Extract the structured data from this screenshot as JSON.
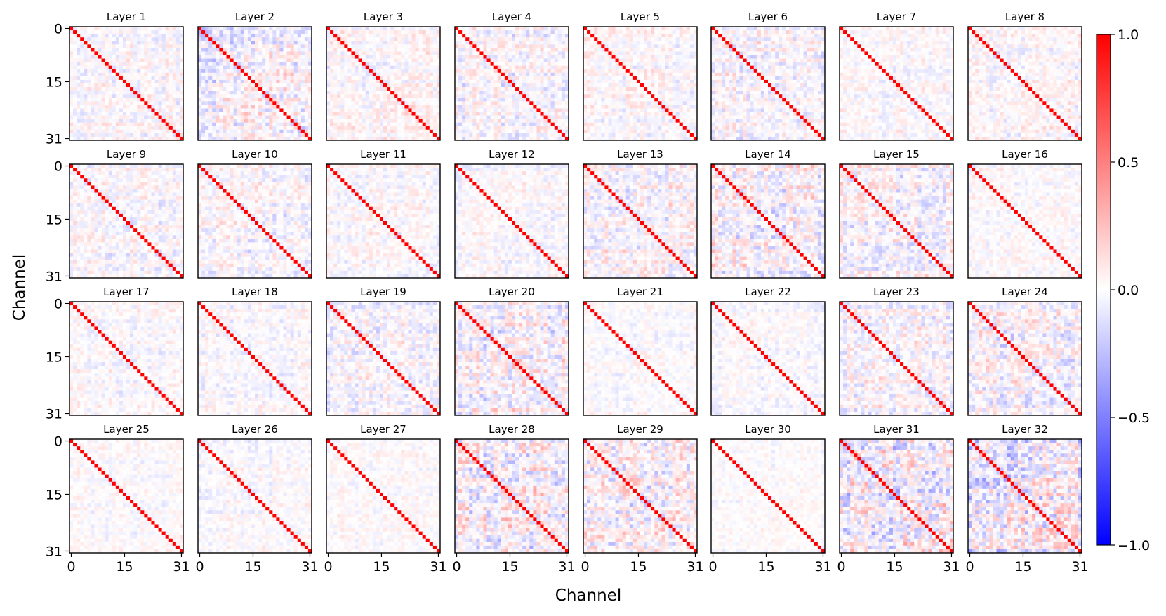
{
  "chart_data": {
    "type": "heatmap",
    "description_of_values": "32 channel-by-channel correlation matrices (one per layer); diagonal is 1.0, off-diagonal values are small",
    "xlabel": "Channel",
    "ylabel": "Channel",
    "x_ticks": [
      "0",
      "15",
      "31"
    ],
    "y_ticks": [
      "0",
      "15",
      "31"
    ],
    "matrix_size": 32,
    "diagonal_value": 1.0,
    "colorbar": {
      "min": -1.0,
      "max": 1.0,
      "ticks": [
        "1.0",
        "0.5",
        "0.0",
        "−0.5",
        "−1.0"
      ],
      "colors": {
        "low": "#0000ff",
        "mid": "#ffffff",
        "high": "#ff0000"
      }
    },
    "panels": [
      {
        "title": "Layer 1",
        "noise": 0.1
      },
      {
        "title": "Layer 2",
        "noise": 0.16
      },
      {
        "title": "Layer 3",
        "noise": 0.1
      },
      {
        "title": "Layer 4",
        "noise": 0.12
      },
      {
        "title": "Layer 5",
        "noise": 0.09
      },
      {
        "title": "Layer 6",
        "noise": 0.12
      },
      {
        "title": "Layer 7",
        "noise": 0.08
      },
      {
        "title": "Layer 8",
        "noise": 0.09
      },
      {
        "title": "Layer 9",
        "noise": 0.1
      },
      {
        "title": "Layer 10",
        "noise": 0.11
      },
      {
        "title": "Layer 11",
        "noise": 0.08
      },
      {
        "title": "Layer 12",
        "noise": 0.08
      },
      {
        "title": "Layer 13",
        "noise": 0.13
      },
      {
        "title": "Layer 14",
        "noise": 0.16
      },
      {
        "title": "Layer 15",
        "noise": 0.15
      },
      {
        "title": "Layer 16",
        "noise": 0.07
      },
      {
        "title": "Layer 17",
        "noise": 0.08
      },
      {
        "title": "Layer 18",
        "noise": 0.08
      },
      {
        "title": "Layer 19",
        "noise": 0.12
      },
      {
        "title": "Layer 20",
        "noise": 0.15
      },
      {
        "title": "Layer 21",
        "noise": 0.06
      },
      {
        "title": "Layer 22",
        "noise": 0.07
      },
      {
        "title": "Layer 23",
        "noise": 0.12
      },
      {
        "title": "Layer 24",
        "noise": 0.15
      },
      {
        "title": "Layer 25",
        "noise": 0.06
      },
      {
        "title": "Layer 26",
        "noise": 0.07
      },
      {
        "title": "Layer 27",
        "noise": 0.06
      },
      {
        "title": "Layer 28",
        "noise": 0.18
      },
      {
        "title": "Layer 29",
        "noise": 0.18
      },
      {
        "title": "Layer 30",
        "noise": 0.05
      },
      {
        "title": "Layer 31",
        "noise": 0.22
      },
      {
        "title": "Layer 32",
        "noise": 0.22
      }
    ]
  }
}
